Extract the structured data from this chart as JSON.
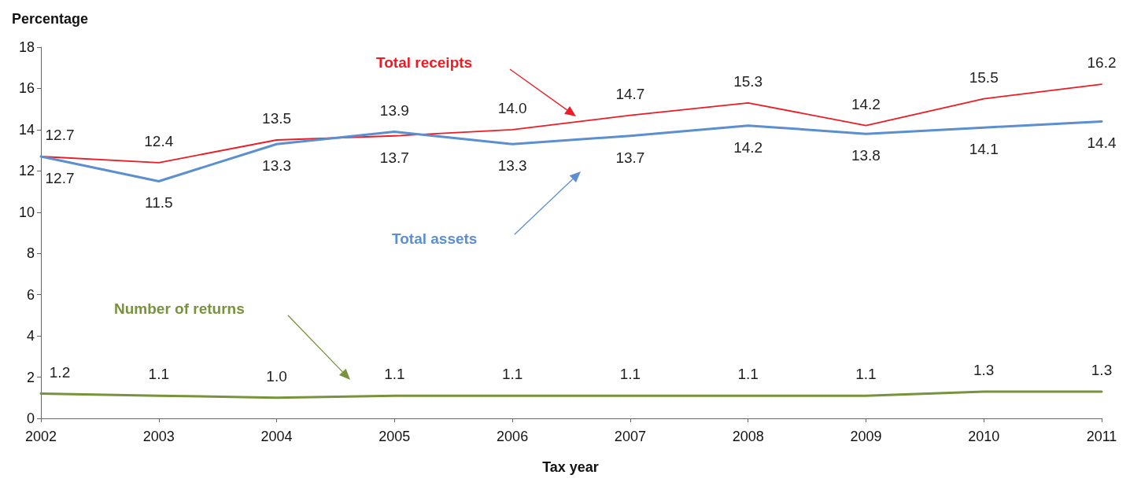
{
  "chart_data": {
    "type": "line",
    "ylabel": "Percentage",
    "xlabel": "Tax year",
    "categories": [
      "2002",
      "2003",
      "2004",
      "2005",
      "2006",
      "2007",
      "2008",
      "2009",
      "2010",
      "2011"
    ],
    "series": [
      {
        "name": "Total receipts",
        "color": "#ed1c24",
        "values": [
          12.7,
          12.4,
          13.5,
          13.7,
          14.0,
          14.7,
          15.3,
          14.2,
          15.5,
          16.2
        ],
        "value_labels": [
          "12.7",
          "12.4",
          "13.5",
          "13.7",
          "14.0",
          "14.7",
          "15.3",
          "14.2",
          "15.5",
          "16.2"
        ]
      },
      {
        "name": "Total assets",
        "color": "#5b8fd0",
        "values": [
          12.7,
          11.5,
          13.3,
          13.9,
          13.3,
          13.7,
          14.2,
          13.8,
          14.1,
          14.4
        ],
        "value_labels": [
          "12.7",
          "11.5",
          "13.3",
          "13.9",
          "13.3",
          "13.7",
          "14.2",
          "13.8",
          "14.1",
          "14.4"
        ]
      },
      {
        "name": "Number of returns",
        "color": "#77933c",
        "values": [
          1.2,
          1.1,
          1.0,
          1.1,
          1.1,
          1.1,
          1.1,
          1.1,
          1.3,
          1.3
        ],
        "value_labels": [
          "1.2",
          "1.1",
          "1.0",
          "1.1",
          "1.1",
          "1.1",
          "1.1",
          "1.1",
          "1.3",
          "1.3"
        ]
      }
    ],
    "ylim": [
      0,
      18
    ],
    "yticks": [
      0,
      2,
      4,
      6,
      8,
      10,
      12,
      14,
      16,
      18
    ],
    "grid": false,
    "legend": false,
    "marker": "none",
    "line_style": "solid"
  }
}
